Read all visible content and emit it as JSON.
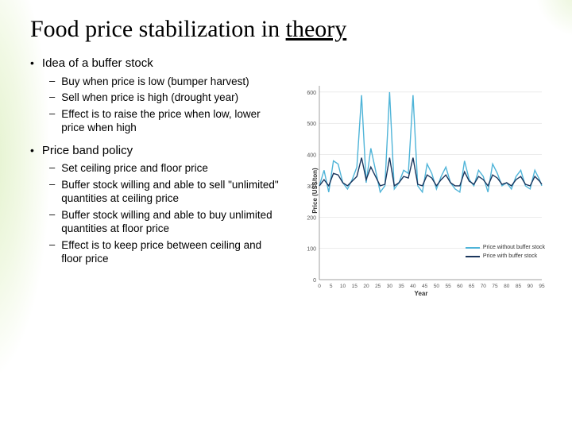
{
  "title_pre": "Food price stabilization in ",
  "title_underline": "theory",
  "bullets": [
    {
      "text": "Idea of a buffer stock",
      "sub": [
        "Buy when price is low (bumper harvest)",
        "Sell when price is high (drought year)",
        "Effect is to raise the price when low, lower price when high"
      ]
    },
    {
      "text": "Price band policy",
      "sub": [
        "Set ceiling price and floor price",
        "Buffer stock willing and able to sell \"unlimited\" quantities at ceiling price",
        "Buffer stock willing and able to buy unlimited quantities at floor price",
        "Effect is to keep price between ceiling and floor price"
      ]
    }
  ],
  "chart": {
    "type": "line",
    "xlabel": "Year",
    "ylabel": "Price (US$/ton)",
    "xlim": [
      0,
      95
    ],
    "ylim": [
      0,
      620
    ],
    "xtick_step": 5,
    "ytick_step": 100,
    "xticks": [
      0,
      5,
      10,
      15,
      20,
      25,
      30,
      35,
      40,
      45,
      50,
      55,
      60,
      65,
      70,
      75,
      80,
      85,
      90,
      95
    ],
    "yticks": [
      0,
      100,
      200,
      300,
      400,
      500,
      600
    ],
    "background_color": "#ffffff",
    "grid_color": "#d8d8d8",
    "line_width": 1.4,
    "series": [
      {
        "name": "Price without buffer stock",
        "color": "#4fb4d8",
        "x": [
          0,
          2,
          4,
          6,
          8,
          10,
          12,
          14,
          16,
          18,
          20,
          22,
          24,
          26,
          28,
          30,
          32,
          34,
          36,
          38,
          40,
          42,
          44,
          46,
          48,
          50,
          52,
          54,
          56,
          58,
          60,
          62,
          64,
          66,
          68,
          70,
          72,
          74,
          76,
          78,
          80,
          82,
          84,
          86,
          88,
          90,
          92,
          94,
          95
        ],
        "y": [
          300,
          350,
          280,
          380,
          370,
          310,
          290,
          320,
          360,
          590,
          310,
          420,
          350,
          280,
          300,
          600,
          290,
          310,
          350,
          340,
          590,
          300,
          280,
          370,
          340,
          290,
          330,
          360,
          310,
          290,
          280,
          380,
          320,
          300,
          350,
          330,
          280,
          370,
          340,
          300,
          310,
          290,
          330,
          350,
          300,
          290,
          350,
          320,
          300
        ]
      },
      {
        "name": "Price with buffer stock",
        "color": "#1b365d",
        "x": [
          0,
          2,
          4,
          6,
          8,
          10,
          12,
          14,
          16,
          18,
          20,
          22,
          24,
          26,
          28,
          30,
          32,
          34,
          36,
          38,
          40,
          42,
          44,
          46,
          48,
          50,
          52,
          54,
          56,
          58,
          60,
          62,
          64,
          66,
          68,
          70,
          72,
          74,
          76,
          78,
          80,
          82,
          84,
          86,
          88,
          90,
          92,
          94,
          95
        ],
        "y": [
          300,
          320,
          300,
          340,
          335,
          310,
          300,
          315,
          330,
          390,
          320,
          360,
          330,
          300,
          305,
          390,
          300,
          310,
          330,
          325,
          390,
          305,
          300,
          335,
          325,
          300,
          320,
          335,
          310,
          300,
          300,
          345,
          315,
          305,
          330,
          320,
          300,
          335,
          325,
          305,
          310,
          300,
          320,
          330,
          305,
          300,
          330,
          315,
          305
        ]
      }
    ],
    "legend_labels": [
      "Price without buffer stock",
      "Price with buffer stock"
    ]
  }
}
